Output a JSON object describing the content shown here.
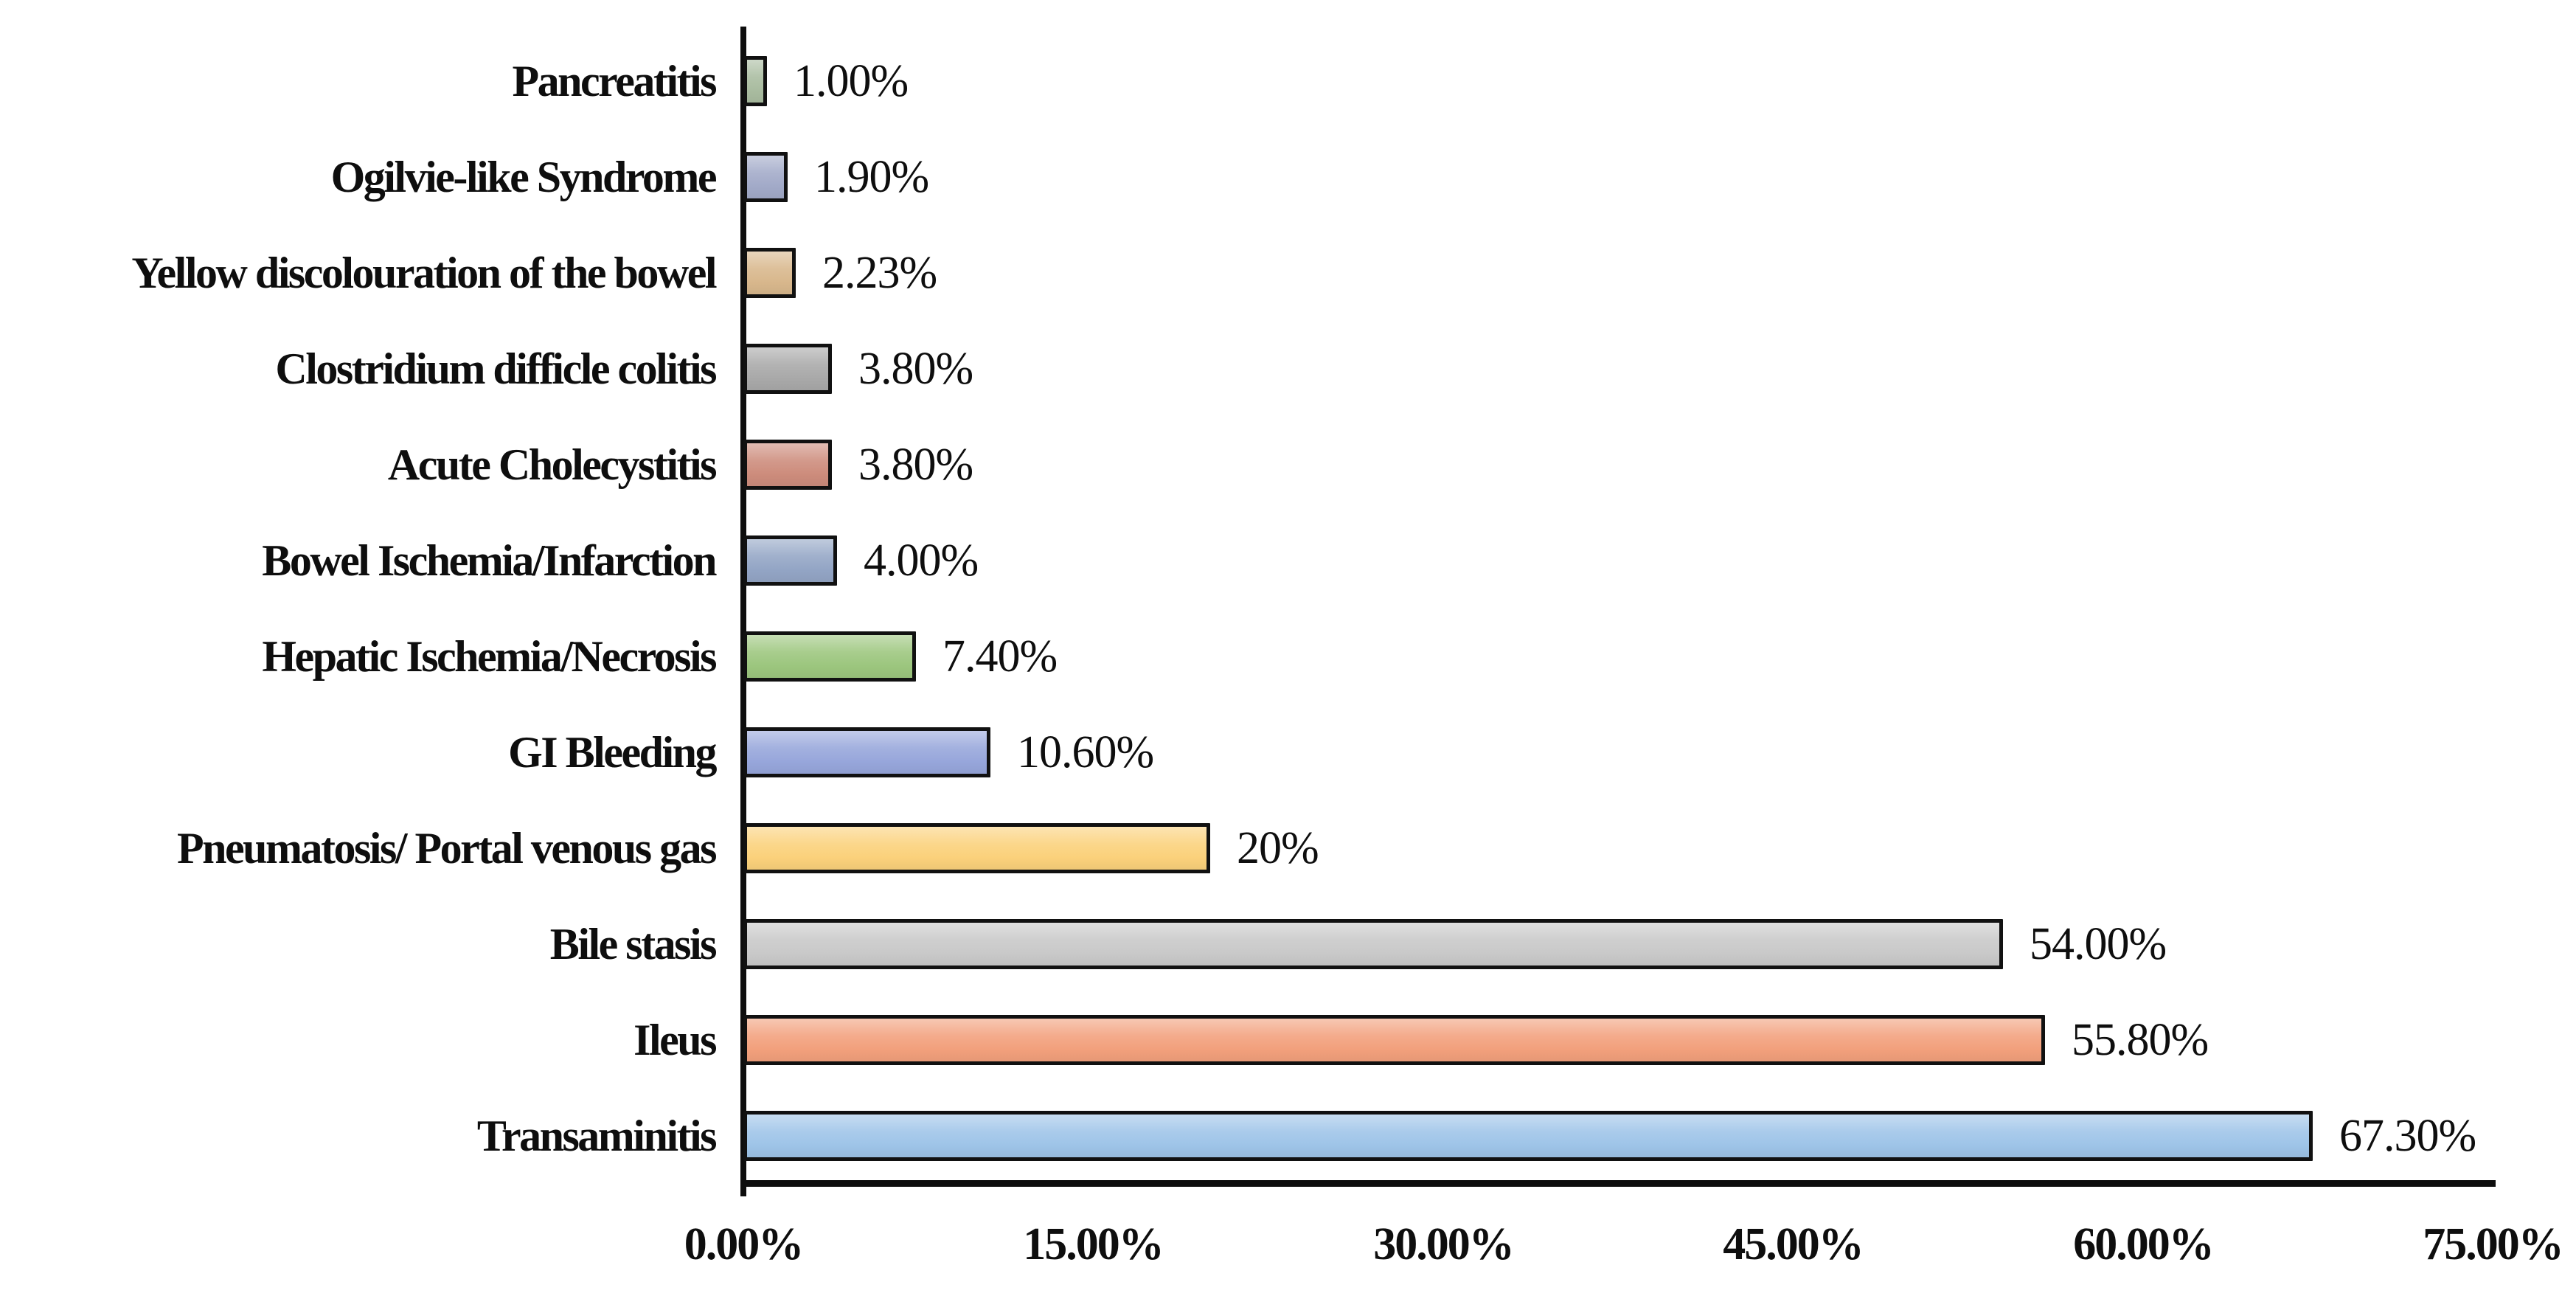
{
  "chart_data": {
    "type": "bar",
    "orientation": "horizontal",
    "title": "",
    "xlabel": "",
    "ylabel": "",
    "xlim": [
      0,
      75
    ],
    "grid": false,
    "legend": false,
    "data_label_position": "outside-end",
    "axis_color": "#0d0d0d",
    "background_color": "#ffffff",
    "x_ticks": [
      "0.00%",
      "15.00%",
      "30.00%",
      "45.00%",
      "60.00%",
      "75.00%"
    ],
    "x_tick_values": [
      0,
      15,
      30,
      45,
      60,
      75
    ],
    "categories": [
      "Pancreatitis",
      "Ogilvie-like Syndrome",
      "Yellow discolouration of the bowel",
      "Clostridium difficle colitis",
      "Acute Cholecystitis",
      "Bowel Ischemia/Infarction",
      "Hepatic Ischemia/Necrosis",
      "GI Bleeding",
      "Pneumatosis/ Portal venous gas",
      "Bile stasis",
      "Ileus",
      "Transaminitis"
    ],
    "values": [
      1.0,
      1.9,
      2.23,
      3.8,
      3.8,
      4.0,
      7.4,
      10.6,
      20,
      54.0,
      55.8,
      67.3
    ],
    "value_labels": [
      "1.00%",
      "1.90%",
      "2.23%",
      "3.80%",
      "3.80%",
      "4.00%",
      "7.40%",
      "10.60%",
      "20%",
      "54.00%",
      "55.80%",
      "67.30%"
    ],
    "bar_colors": [
      "#A9BCA0",
      "#A2AAC8",
      "#D8B78C",
      "#A9A9A9",
      "#CD8C7C",
      "#93A5C5",
      "#9CC67E",
      "#97A6DB",
      "#FBD17B",
      "#C9C9C9",
      "#F2A07C",
      "#9EC4E8"
    ]
  }
}
